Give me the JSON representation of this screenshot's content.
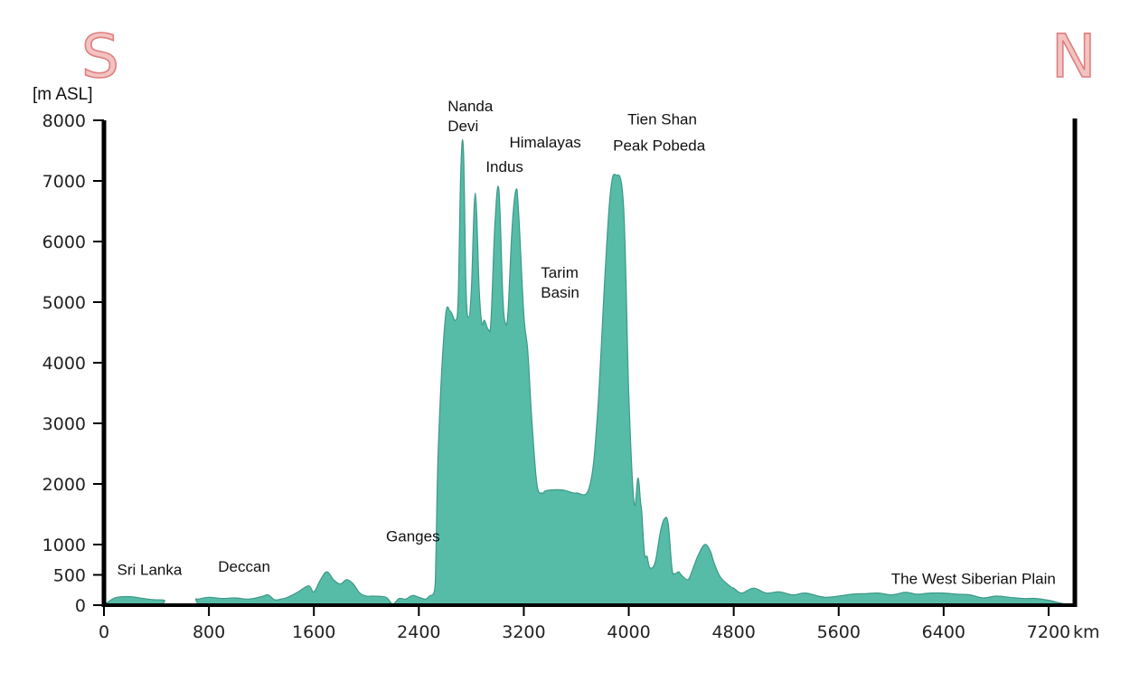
{
  "directions": {
    "left": "S",
    "right": "N"
  },
  "colors": {
    "terrain_fill": "#56bca8",
    "terrain_stroke": "#3d9987",
    "axis": "#000000",
    "direction_fill": "#f3c3c1",
    "direction_stroke": "#dd7f7f"
  },
  "chart_data": {
    "type": "area",
    "ylabel": "[m ASL]",
    "xunit": "km",
    "xlim": [
      0,
      7400
    ],
    "ylim": [
      0,
      8000
    ],
    "yticks": [
      "0",
      "500",
      "1000",
      "2000",
      "3000",
      "4000",
      "5000",
      "6000",
      "7000",
      "8000"
    ],
    "xticks": [
      "0",
      "800",
      "1600",
      "2400",
      "3200",
      "4000",
      "4800",
      "5600",
      "6400",
      "7200"
    ],
    "grid": false,
    "x": [
      0,
      50,
      100,
      200,
      300,
      380,
      460,
      470,
      690,
      700,
      720,
      800,
      900,
      1000,
      1100,
      1200,
      1250,
      1300,
      1350,
      1400,
      1480,
      1560,
      1600,
      1650,
      1700,
      1750,
      1800,
      1850,
      1900,
      1950,
      2000,
      2060,
      2150,
      2200,
      2250,
      2300,
      2350,
      2400,
      2450,
      2480,
      2520,
      2530,
      2550,
      2600,
      2640,
      2680,
      2700,
      2720,
      2740,
      2760,
      2780,
      2800,
      2830,
      2860,
      2880,
      2900,
      2930,
      2950,
      2980,
      3010,
      3040,
      3060,
      3080,
      3110,
      3140,
      3160,
      3200,
      3230,
      3260,
      3300,
      3340,
      3360,
      3400,
      3500,
      3600,
      3700,
      3760,
      3820,
      3860,
      3900,
      3960,
      4000,
      4040,
      4070,
      4090,
      4100,
      4120,
      4140,
      4160,
      4200,
      4240,
      4270,
      4300,
      4330,
      4350,
      4380,
      4400,
      4450,
      4480,
      4530,
      4580,
      4620,
      4650,
      4700,
      4780,
      4800,
      4860,
      4950,
      5050,
      5150,
      5250,
      5350,
      5500,
      5700,
      5800,
      5900,
      6000,
      6100,
      6150,
      6200,
      6300,
      6400,
      6500,
      6600,
      6700,
      6800,
      6900,
      7000,
      7100,
      7200,
      7300,
      7400
    ],
    "y": [
      0,
      80,
      130,
      140,
      110,
      90,
      80,
      0,
      0,
      100,
      100,
      130,
      110,
      120,
      100,
      140,
      170,
      90,
      100,
      130,
      220,
      320,
      220,
      420,
      550,
      420,
      350,
      420,
      350,
      200,
      150,
      150,
      130,
      20,
      110,
      100,
      160,
      130,
      100,
      150,
      250,
      800,
      2700,
      4700,
      4850,
      4700,
      5100,
      7200,
      7500,
      5200,
      4750,
      5200,
      6800,
      5200,
      4650,
      4700,
      4550,
      4700,
      6300,
      6850,
      5100,
      4650,
      4850,
      6200,
      6850,
      6500,
      4800,
      4200,
      3100,
      2000,
      1850,
      1880,
      1900,
      1900,
      1850,
      1950,
      3100,
      5500,
      6800,
      7100,
      6600,
      3500,
      1700,
      2100,
      1700,
      1500,
      850,
      800,
      620,
      700,
      1200,
      1420,
      1350,
      600,
      520,
      550,
      500,
      420,
      550,
      830,
      1000,
      900,
      700,
      460,
      300,
      280,
      200,
      280,
      200,
      220,
      170,
      200,
      130,
      180,
      190,
      200,
      170,
      210,
      200,
      180,
      200,
      200,
      180,
      170,
      120,
      150,
      130,
      110,
      110,
      80,
      30,
      0
    ],
    "annotations": [
      {
        "lines": [
          "Sri Lanka"
        ],
        "x": 100,
        "y": 500
      },
      {
        "lines": [
          "Deccan"
        ],
        "x": 870,
        "y": 550
      },
      {
        "lines": [
          "Ganges"
        ],
        "x": 2150,
        "y": 1050
      },
      {
        "lines": [
          "Nanda",
          "Devi"
        ],
        "x": 2620,
        "y": 8150
      },
      {
        "lines": [
          "Indus"
        ],
        "x": 2910,
        "y": 7150
      },
      {
        "lines": [
          "Himalayas"
        ],
        "x": 3090,
        "y": 7550
      },
      {
        "lines": [
          "Tarim",
          "Basin"
        ],
        "x": 3330,
        "y": 5400
      },
      {
        "lines": [
          "Tien Shan"
        ],
        "x": 3990,
        "y": 7930
      },
      {
        "lines": [
          "Peak Pobeda"
        ],
        "x": 3880,
        "y": 7500
      },
      {
        "lines": [
          "The West Siberian Plain"
        ],
        "x": 6000,
        "y": 350
      }
    ]
  }
}
